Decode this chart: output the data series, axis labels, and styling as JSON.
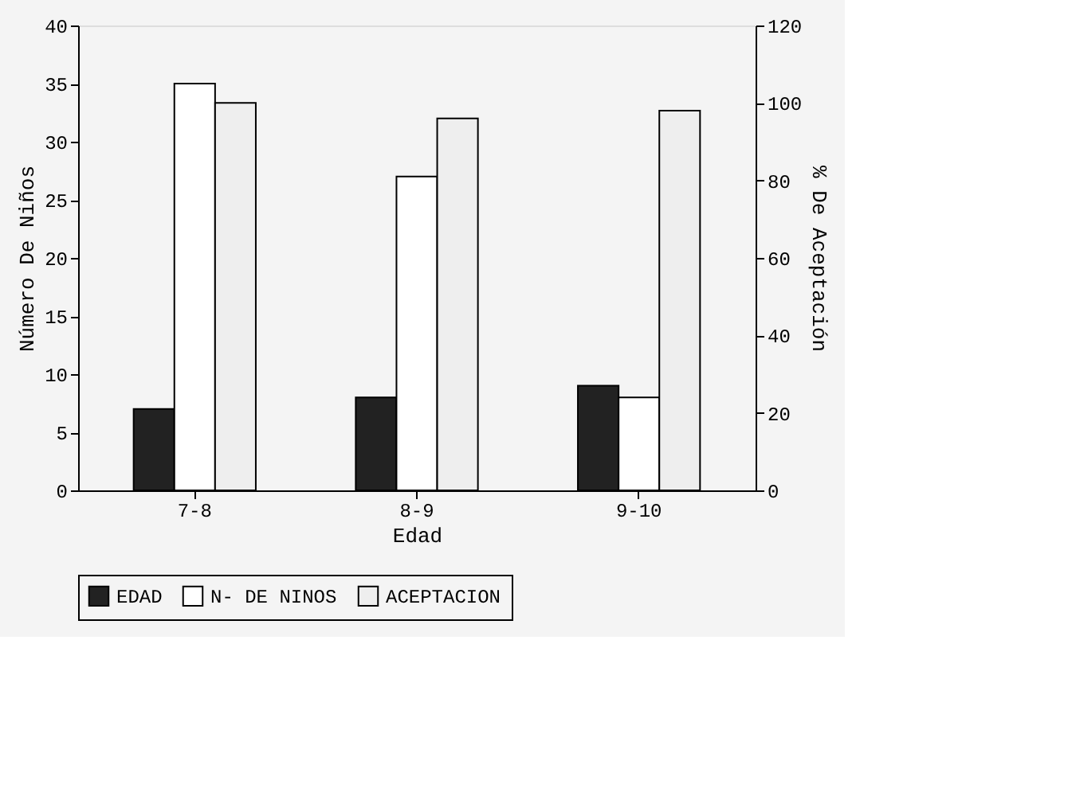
{
  "chart_data": {
    "type": "bar",
    "xlabel": "Edad",
    "ylabel": "Número De Niños",
    "y2label": "% De Aceptación",
    "categories": [
      "7-8",
      "8-9",
      "9-10"
    ],
    "series": [
      {
        "name": "EDAD",
        "color": "#222222",
        "values": [
          7,
          8,
          9
        ]
      },
      {
        "name": "N- DE NINOS",
        "color": "#ffffff",
        "values": [
          35,
          27,
          8
        ]
      },
      {
        "name": "ACEPTACION",
        "color": "#eeeeee",
        "values": [
          100,
          96,
          98
        ],
        "axis": "y2"
      }
    ],
    "ylim": [
      0,
      40
    ],
    "yticks": [
      0,
      5,
      10,
      15,
      20,
      25,
      30,
      35,
      40
    ],
    "y2lim": [
      0,
      120
    ],
    "y2ticks": [
      0,
      20,
      40,
      60,
      80,
      100,
      120
    ],
    "grid": false,
    "legend": "bottom"
  }
}
